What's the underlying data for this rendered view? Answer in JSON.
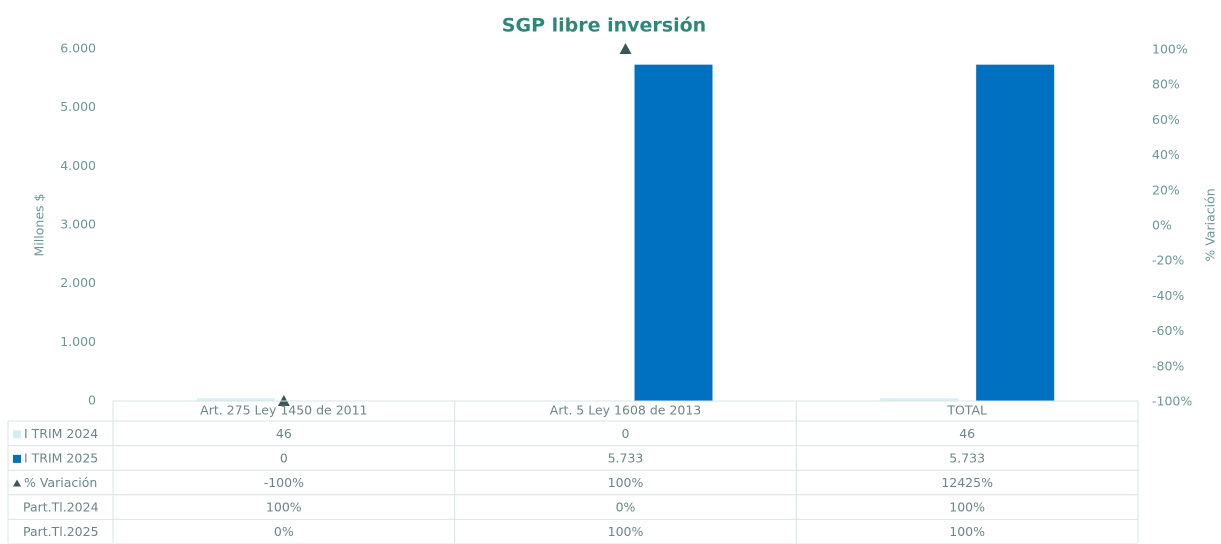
{
  "chart_data": {
    "type": "bar",
    "title": "SGP libre inversión",
    "y_label": "Millones $",
    "y2_label": "% Variación",
    "categories": [
      "Art. 275 Ley 1450 de 2011",
      "Art. 5 Ley 1608 de 2013",
      "TOTAL"
    ],
    "series": [
      {
        "name": "I TRIM 2024",
        "color": "#d4eef5",
        "values": [
          46,
          0,
          46
        ]
      },
      {
        "name": "I TRIM 2025",
        "color": "#0070c0",
        "values": [
          0,
          5733,
          5733
        ],
        "value_labels": [
          "0",
          "5.733",
          "5.733"
        ]
      },
      {
        "name": "% Variación",
        "type": "line",
        "marker": "triangle",
        "color": "#3d5757",
        "axis": "y2",
        "values": [
          -100,
          100,
          12425
        ],
        "value_labels": [
          "-100%",
          "100%",
          "12425%"
        ]
      }
    ],
    "table_rows": [
      {
        "name": "Part.Tl.2024",
        "values": [
          100,
          0,
          100
        ],
        "value_labels": [
          "100%",
          "0%",
          "100%"
        ]
      },
      {
        "name": "Part.Tl.2025",
        "values": [
          0,
          100,
          100
        ],
        "value_labels": [
          "0%",
          "100%",
          "100%"
        ]
      }
    ],
    "ylim": [
      0,
      6000
    ],
    "yticks": [
      0,
      {
        "value": 1000,
        "label": "1.000"
      },
      {
        "value": 2000,
        "label": "2.000"
      },
      {
        "value": 3000,
        "label": "3.000"
      },
      {
        "value": 4000,
        "label": "4.000"
      },
      {
        "value": 5000,
        "label": "5.000"
      },
      {
        "value": 6000,
        "label": "6.000"
      }
    ],
    "y2lim": [
      -100,
      100
    ],
    "y2ticks": [
      {
        "value": -100,
        "label": "-100%"
      },
      {
        "value": -80,
        "label": "-80%"
      },
      {
        "value": -60,
        "label": "-60%"
      },
      {
        "value": -40,
        "label": "-40%"
      },
      {
        "value": -20,
        "label": "-20%"
      },
      {
        "value": 0,
        "label": "0%"
      },
      {
        "value": 20,
        "label": "20%"
      },
      {
        "value": 40,
        "label": "40%"
      },
      {
        "value": 60,
        "label": "60%"
      },
      {
        "value": 80,
        "label": "80%"
      },
      {
        "value": 100,
        "label": "100%"
      }
    ]
  }
}
